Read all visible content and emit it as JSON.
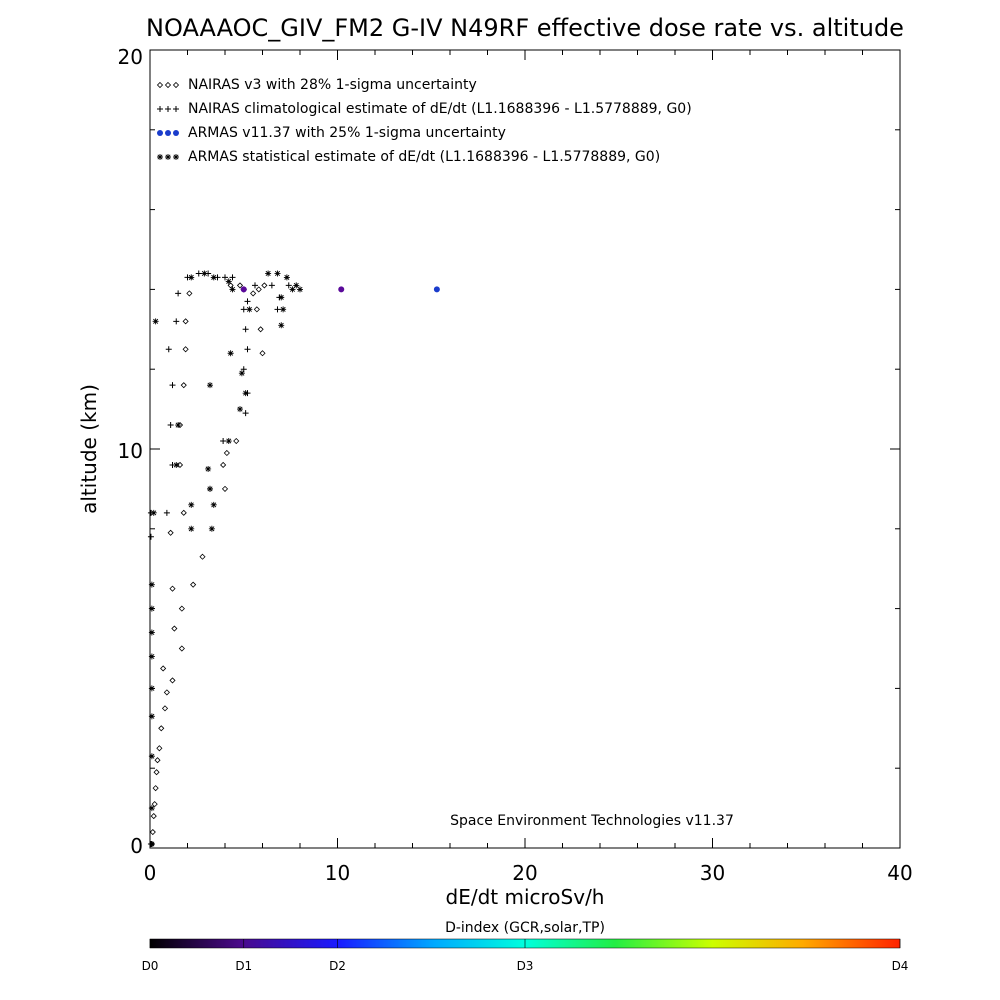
{
  "chart_data": {
    "type": "scatter",
    "title": "NOAAAOC_GIV_FM2 G-IV   N49RF  effective dose rate vs. altitude",
    "xlabel": "dE/dt microSv/h",
    "ylabel": "altitude (km)",
    "xlim": [
      0,
      40
    ],
    "ylim": [
      0,
      20
    ],
    "x_ticks": [
      "0",
      "10",
      "20",
      "30",
      "40"
    ],
    "y_ticks": [
      "0",
      "10",
      "20"
    ],
    "grid": false,
    "legend_position": "top-left",
    "legend": [
      {
        "label": "NAIRAS v3 with 28% 1-sigma uncertainty",
        "symbol": "diamond",
        "color": "#000000"
      },
      {
        "label": "NAIRAS climatological estimate of dE/dt (L1.1688396 - L1.5778889, G0)",
        "symbol": "plus",
        "color": "#000000"
      },
      {
        "label": "ARMAS v11.37 with 25% 1-sigma uncertainty",
        "symbol": "dot",
        "color": "#1a3ccc"
      },
      {
        "label": "ARMAS statistical estimate of dE/dt (L1.1688396 - L1.5778889, G0)",
        "symbol": "asterisk",
        "color": "#000000"
      }
    ],
    "annotation": "Space Environment Technologies v11.37",
    "series": [
      {
        "name": "NAIRAS v3 with 28% 1-sigma uncertainty",
        "points": [
          [
            0.1,
            0.1
          ],
          [
            0.15,
            0.4
          ],
          [
            0.2,
            0.8
          ],
          [
            0.25,
            1.1
          ],
          [
            0.3,
            1.5
          ],
          [
            0.35,
            1.9
          ],
          [
            0.4,
            2.2
          ],
          [
            0.5,
            2.5
          ],
          [
            0.6,
            3.0
          ],
          [
            0.8,
            3.5
          ],
          [
            0.9,
            3.9
          ],
          [
            1.2,
            4.2
          ],
          [
            0.7,
            4.5
          ],
          [
            1.7,
            5.0
          ],
          [
            1.3,
            5.5
          ],
          [
            1.7,
            6.0
          ],
          [
            1.2,
            6.5
          ],
          [
            2.3,
            6.6
          ],
          [
            2.8,
            7.3
          ],
          [
            1.1,
            7.9
          ],
          [
            1.8,
            8.4
          ],
          [
            1.6,
            9.6
          ],
          [
            1.6,
            10.6
          ],
          [
            1.8,
            11.6
          ],
          [
            1.9,
            12.5
          ],
          [
            1.9,
            13.2
          ],
          [
            2.1,
            13.9
          ],
          [
            4.6,
            10.2
          ],
          [
            3.9,
            9.6
          ],
          [
            4.1,
            9.9
          ],
          [
            4.0,
            9.0
          ],
          [
            5.7,
            13.5
          ],
          [
            5.9,
            13.0
          ],
          [
            6.0,
            12.4
          ],
          [
            5.5,
            13.9
          ],
          [
            5.8,
            14.0
          ],
          [
            6.1,
            14.1
          ],
          [
            4.3,
            14.1
          ],
          [
            4.8,
            14.1
          ]
        ]
      },
      {
        "name": "NAIRAS climatological estimate of dE/dt (L1.1688396 - L1.5778889, G0)",
        "points": [
          [
            0.05,
            0.1
          ],
          [
            0.05,
            7.8
          ],
          [
            0.05,
            8.4
          ],
          [
            0.9,
            8.4
          ],
          [
            1.2,
            9.6
          ],
          [
            1.1,
            10.6
          ],
          [
            1.2,
            11.6
          ],
          [
            1.0,
            12.5
          ],
          [
            1.4,
            13.2
          ],
          [
            1.5,
            13.9
          ],
          [
            3.2,
            9.0
          ],
          [
            3.9,
            10.2
          ],
          [
            5.1,
            10.9
          ],
          [
            5.2,
            11.4
          ],
          [
            5.0,
            12.0
          ],
          [
            5.2,
            12.5
          ],
          [
            5.1,
            13.0
          ],
          [
            5.0,
            13.5
          ],
          [
            5.2,
            13.7
          ],
          [
            5.0,
            14.0
          ],
          [
            5.6,
            14.1
          ],
          [
            6.5,
            14.1
          ],
          [
            7.4,
            14.1
          ],
          [
            6.8,
            13.5
          ],
          [
            6.9,
            13.8
          ],
          [
            2.0,
            14.3
          ],
          [
            2.6,
            14.4
          ],
          [
            3.1,
            14.4
          ],
          [
            3.6,
            14.3
          ],
          [
            4.0,
            14.3
          ],
          [
            4.4,
            14.3
          ]
        ]
      },
      {
        "name": "ARMAS v11.37 with 25% 1-sigma uncertainty",
        "points": [
          [
            5.0,
            14.0
          ],
          [
            10.2,
            14.0
          ],
          [
            15.3,
            14.0
          ]
        ],
        "colors": [
          "#5a0a9a",
          "#5a0a9a",
          "#1a3ccc"
        ]
      },
      {
        "name": "ARMAS statistical estimate of dE/dt (L1.1688396 - L1.5778889, G0)",
        "points": [
          [
            0.1,
            0.1
          ],
          [
            0.1,
            1.0
          ],
          [
            0.1,
            2.3
          ],
          [
            0.1,
            3.3
          ],
          [
            0.1,
            4.0
          ],
          [
            0.1,
            4.8
          ],
          [
            0.1,
            5.4
          ],
          [
            0.1,
            6.0
          ],
          [
            0.1,
            6.6
          ],
          [
            0.2,
            8.4
          ],
          [
            0.3,
            13.2
          ],
          [
            1.4,
            9.6
          ],
          [
            1.5,
            10.6
          ],
          [
            2.2,
            8.0
          ],
          [
            2.2,
            8.6
          ],
          [
            3.3,
            8.0
          ],
          [
            3.4,
            8.6
          ],
          [
            3.1,
            9.5
          ],
          [
            3.2,
            9.0
          ],
          [
            4.2,
            10.2
          ],
          [
            4.3,
            12.4
          ],
          [
            3.2,
            11.6
          ],
          [
            4.8,
            11.0
          ],
          [
            4.9,
            11.9
          ],
          [
            5.1,
            11.4
          ],
          [
            5.3,
            13.5
          ],
          [
            7.0,
            13.1
          ],
          [
            7.1,
            13.5
          ],
          [
            7.0,
            13.8
          ],
          [
            7.8,
            14.1
          ],
          [
            8.0,
            14.0
          ],
          [
            7.6,
            14.0
          ],
          [
            6.3,
            14.4
          ],
          [
            6.8,
            14.4
          ],
          [
            7.3,
            14.3
          ],
          [
            2.2,
            14.3
          ],
          [
            2.9,
            14.4
          ],
          [
            3.4,
            14.3
          ],
          [
            4.2,
            14.2
          ],
          [
            4.4,
            14.0
          ]
        ]
      }
    ],
    "colorbar": {
      "label": "D-index (GCR,solar,TP)",
      "ticks": [
        {
          "label": "D0",
          "pos": 0.0
        },
        {
          "label": "D1",
          "pos": 0.125
        },
        {
          "label": "D2",
          "pos": 0.25
        },
        {
          "label": "D3",
          "pos": 0.5
        },
        {
          "label": "D4",
          "pos": 1.0
        }
      ],
      "stops": [
        {
          "offset": 0.0,
          "color": "#000000"
        },
        {
          "offset": 0.12,
          "color": "#4a0a8a"
        },
        {
          "offset": 0.25,
          "color": "#1a1aff"
        },
        {
          "offset": 0.38,
          "color": "#00aaff"
        },
        {
          "offset": 0.5,
          "color": "#00ffdd"
        },
        {
          "offset": 0.62,
          "color": "#22ee44"
        },
        {
          "offset": 0.75,
          "color": "#ccff00"
        },
        {
          "offset": 0.87,
          "color": "#ffaa00"
        },
        {
          "offset": 1.0,
          "color": "#ff2200"
        }
      ]
    }
  }
}
